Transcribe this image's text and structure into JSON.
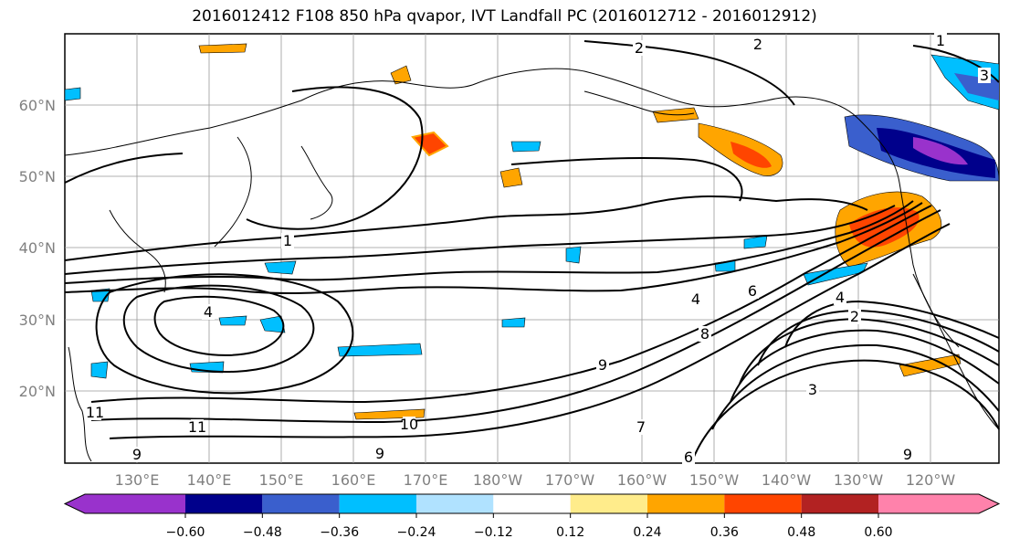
{
  "title": "2016012412 F108 850 hPa qvapor, IVT Landfall PC (2016012712 - 2016012912)",
  "map": {
    "lat_labels": [
      "60°N",
      "50°N",
      "40°N",
      "30°N",
      "20°N"
    ],
    "lon_labels": [
      "130°E",
      "140°E",
      "150°E",
      "160°E",
      "170°E",
      "180°W",
      "170°W",
      "160°W",
      "150°W",
      "140°W",
      "130°W",
      "120°W"
    ],
    "contour_labels": [
      "1",
      "1",
      "2",
      "2",
      "3",
      "4",
      "4",
      "2",
      "3",
      "4",
      "6",
      "8",
      "9",
      "10",
      "11",
      "11",
      "9",
      "9",
      "6",
      "7",
      "9"
    ]
  },
  "colorbar": {
    "colors": [
      "#9932cc",
      "#00008b",
      "#3a5fcd",
      "#00bfff",
      "#b0e2ff",
      "#ffffff",
      "#ffec8b",
      "#ffa500",
      "#ff4500",
      "#b22222",
      "#ff82ab"
    ],
    "tick_labels": [
      "−0.60",
      "−0.48",
      "−0.36",
      "−0.24",
      "−0.12",
      "0.12",
      "0.24",
      "0.36",
      "0.48",
      "0.60"
    ]
  }
}
